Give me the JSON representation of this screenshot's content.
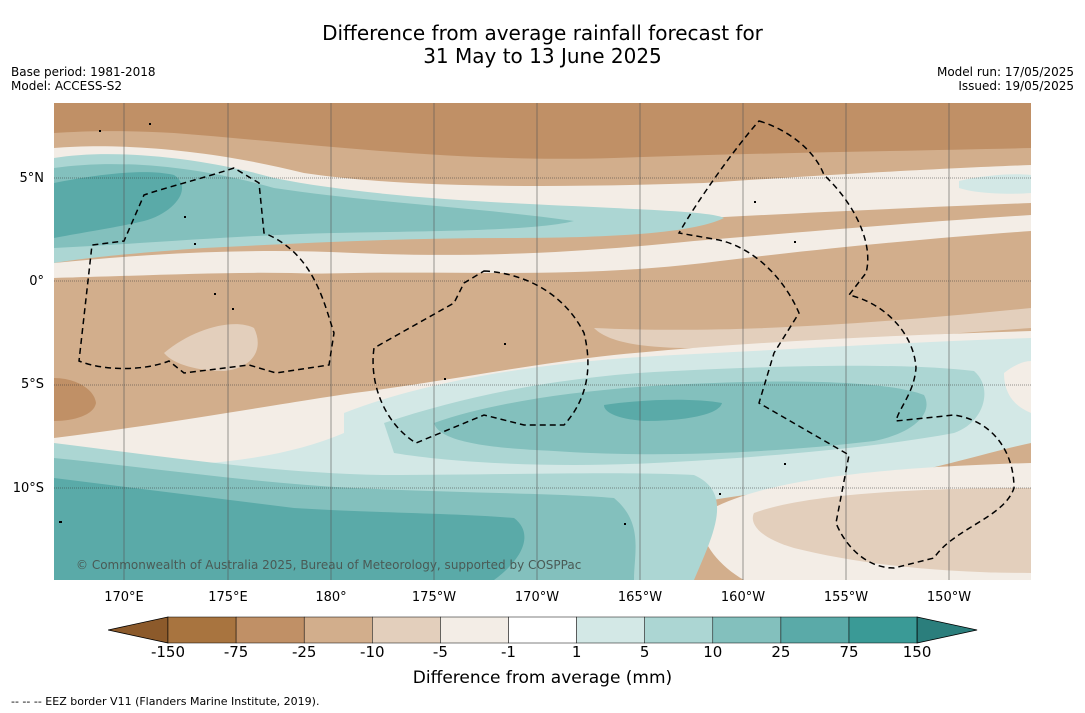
{
  "title_line1": "Difference from average rainfall forecast for",
  "title_line2": "31 May to 13 June 2025",
  "meta_left": {
    "base_period": "Base period: 1981-2018",
    "model": "Model: ACCESS-S2"
  },
  "meta_right": {
    "model_run": "Model run: 17/05/2025",
    "issued": "Issued: 19/05/2025"
  },
  "lat_labels": [
    "5°N",
    "0°",
    "5°S",
    "10°S"
  ],
  "lon_labels": [
    "170°E",
    "175°E",
    "180°",
    "175°W",
    "170°W",
    "165°W",
    "160°W",
    "155°W",
    "150°W"
  ],
  "copyright": "© Commonwealth of Australia 2025, Bureau of Meteorology, supported by COSPPac",
  "colorbar": {
    "ticks": [
      "-150",
      "-75",
      "-25",
      "-10",
      "-5",
      "-1",
      "1",
      "5",
      "10",
      "25",
      "75",
      "150"
    ],
    "colors": [
      "#8c5a2b",
      "#a8743f",
      "#c09066",
      "#d2ae8c",
      "#e3cfbc",
      "#f3ede6",
      "#ffffff",
      "#d3e8e6",
      "#acd6d3",
      "#83c0bd",
      "#5aaaa8",
      "#3a9a96",
      "#2b7e7c"
    ],
    "title": "Difference from average (mm)"
  },
  "footer": "--  --  -- EEZ border V11 (Flanders Marine Institute, 2019)."
}
